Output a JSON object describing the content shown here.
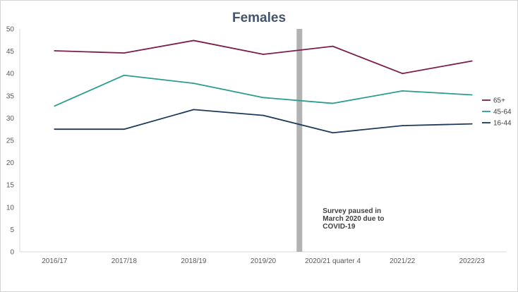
{
  "chart_data": {
    "type": "line",
    "title": "Females",
    "xlabel": "",
    "ylabel": "",
    "categories": [
      "2016/17",
      "2017/18",
      "2018/19",
      "2019/20",
      "2020/21 quarter 4",
      "2021/22",
      "2022/23"
    ],
    "ylim": [
      0,
      50
    ],
    "yticks": [
      0,
      5,
      10,
      15,
      20,
      25,
      30,
      35,
      40,
      45,
      50
    ],
    "grid": false,
    "legend_position": "right",
    "series": [
      {
        "name": "65+",
        "color": "#7b1e4b",
        "values": [
          45.1,
          44.6,
          47.4,
          44.3,
          46.1,
          40.0,
          42.8
        ]
      },
      {
        "name": "45-64",
        "color": "#2a9d8f",
        "values": [
          32.7,
          39.6,
          37.8,
          34.6,
          33.3,
          36.1,
          35.2
        ]
      },
      {
        "name": "16-44",
        "color": "#1b3a5c",
        "values": [
          27.5,
          27.5,
          31.9,
          30.6,
          26.7,
          28.3,
          28.7
        ]
      }
    ],
    "annotation": {
      "text_lines": [
        "Survey paused in",
        "March 2020 due to",
        "COVID-19"
      ],
      "position_between": [
        "2019/20",
        "2020/21 quarter 4"
      ],
      "bar_color": "#b3b3b3"
    }
  }
}
